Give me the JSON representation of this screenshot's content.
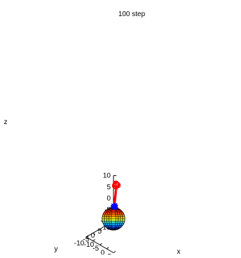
{
  "chart_data": {
    "type": "scatter3d",
    "title": "100 step",
    "xlabel": "x",
    "ylabel": "y",
    "zlabel": "z",
    "xlim": [
      -10,
      10
    ],
    "ylim": [
      -10,
      10
    ],
    "zlim": [
      -10,
      10
    ],
    "xticks": [
      "-10",
      "-5",
      "0",
      "5",
      "10"
    ],
    "yticks": [
      "-10",
      "-5",
      "0",
      "5",
      "10"
    ],
    "zticks": [
      "-10",
      "-5",
      "0",
      "5",
      "10"
    ],
    "grid": false,
    "legend": "none",
    "series": [
      {
        "marker": "circle",
        "color": "#ff0000",
        "points": [
          [
            0.6,
            1.1,
            13.0
          ],
          [
            0.9,
            0.8,
            13.1
          ],
          [
            1.2,
            1.2,
            12.8
          ],
          [
            0.7,
            0.6,
            12.6
          ],
          [
            1.4,
            0.9,
            13.2
          ],
          [
            0.4,
            1.4,
            12.9
          ],
          [
            1.1,
            0.5,
            12.5
          ],
          [
            1.5,
            1.5,
            12.7
          ],
          [
            0.8,
            1.0,
            13.3
          ],
          [
            0.5,
            0.7,
            12.4
          ]
        ]
      },
      {
        "marker": "asterisk",
        "color": "#0000ff",
        "points": [
          [
            0.1,
            0.4,
            3.2
          ],
          [
            0.5,
            0.2,
            3.6
          ],
          [
            -0.3,
            0.6,
            3.3
          ],
          [
            0.7,
            0.7,
            3.1
          ],
          [
            0.2,
            0.9,
            3.5
          ],
          [
            -0.1,
            0.1,
            3.7
          ],
          [
            0.4,
            0.5,
            2.9
          ],
          [
            0.8,
            0.3,
            3.4
          ],
          [
            -0.4,
            0.3,
            3.0
          ],
          [
            0.3,
            1.0,
            3.8
          ]
        ]
      }
    ],
    "sphere": {
      "center": [
        0,
        0,
        -2
      ],
      "radius": 1.5
    }
  }
}
